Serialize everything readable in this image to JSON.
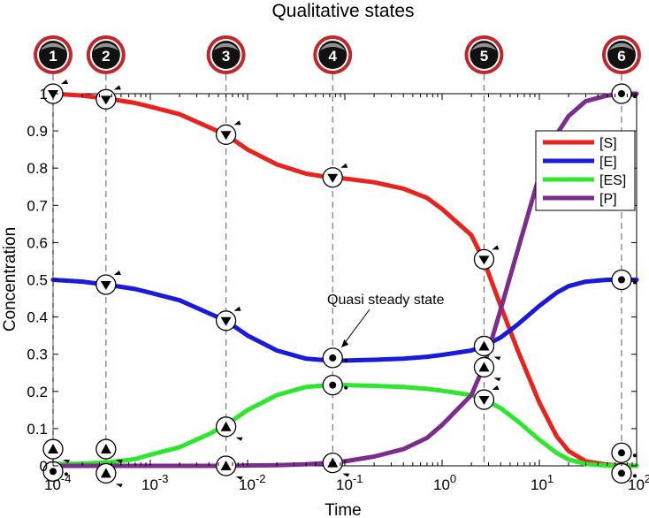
{
  "chart_data": {
    "type": "line",
    "title": "Qualitative states",
    "xlabel": "Time",
    "ylabel": "Concentration",
    "xscale": "log",
    "xlim": [
      0.0001,
      100
    ],
    "ylim": [
      0,
      1
    ],
    "x_ticks": [
      {
        "value": 0.0001,
        "base": "10",
        "exp": "-4"
      },
      {
        "value": 0.001,
        "base": "10",
        "exp": "-3"
      },
      {
        "value": 0.01,
        "base": "10",
        "exp": "-2"
      },
      {
        "value": 0.1,
        "base": "10",
        "exp": "-1"
      },
      {
        "value": 1,
        "base": "10",
        "exp": "0"
      },
      {
        "value": 10,
        "base": "10",
        "exp": "1"
      },
      {
        "value": 100,
        "base": "10",
        "exp": "2"
      }
    ],
    "y_ticks": [
      "0",
      "0.1",
      "0.2",
      "0.3",
      "0.4",
      "0.5",
      "0.6",
      "0.7",
      "0.8",
      "0.9",
      "1"
    ],
    "grid": false,
    "legend_position": "right",
    "series": [
      {
        "name": "[S]",
        "color": "#e8231e",
        "x": [
          0.0001,
          0.0002,
          0.0004,
          0.0007,
          0.001,
          0.002,
          0.004,
          0.006,
          0.01,
          0.02,
          0.04,
          0.07,
          0.1,
          0.2,
          0.4,
          0.7,
          1,
          2,
          2.7,
          4,
          6,
          10,
          15,
          20,
          30,
          50,
          70,
          100
        ],
        "y": [
          1.0,
          0.995,
          0.985,
          0.975,
          0.965,
          0.945,
          0.91,
          0.89,
          0.85,
          0.81,
          0.785,
          0.775,
          0.772,
          0.762,
          0.745,
          0.72,
          0.69,
          0.62,
          0.55,
          0.43,
          0.31,
          0.17,
          0.08,
          0.04,
          0.012,
          0.003,
          0.001,
          0.0
        ]
      },
      {
        "name": "[E]",
        "color": "#1a1adc",
        "x": [
          0.0001,
          0.0002,
          0.0004,
          0.0007,
          0.001,
          0.002,
          0.004,
          0.006,
          0.01,
          0.02,
          0.04,
          0.07,
          0.1,
          0.2,
          0.4,
          0.7,
          1,
          2,
          2.7,
          4,
          6,
          10,
          15,
          20,
          30,
          50,
          70,
          100
        ],
        "y": [
          0.5,
          0.495,
          0.485,
          0.475,
          0.465,
          0.445,
          0.41,
          0.39,
          0.35,
          0.31,
          0.288,
          0.283,
          0.283,
          0.285,
          0.288,
          0.293,
          0.298,
          0.31,
          0.322,
          0.345,
          0.38,
          0.43,
          0.465,
          0.483,
          0.495,
          0.5,
          0.5,
          0.5
        ]
      },
      {
        "name": "[ES]",
        "color": "#2de62d",
        "x": [
          0.0001,
          0.0002,
          0.0004,
          0.0007,
          0.001,
          0.002,
          0.004,
          0.006,
          0.01,
          0.02,
          0.04,
          0.07,
          0.1,
          0.2,
          0.4,
          0.7,
          1,
          2,
          2.7,
          4,
          6,
          10,
          15,
          20,
          30,
          50,
          70,
          100
        ],
        "y": [
          0.005,
          0.006,
          0.01,
          0.018,
          0.03,
          0.05,
          0.085,
          0.11,
          0.15,
          0.19,
          0.212,
          0.217,
          0.217,
          0.215,
          0.212,
          0.207,
          0.202,
          0.19,
          0.178,
          0.155,
          0.12,
          0.07,
          0.035,
          0.017,
          0.005,
          0.001,
          0.0,
          0.0
        ]
      },
      {
        "name": "[P]",
        "color": "#7b2d8e",
        "x": [
          0.0001,
          0.0002,
          0.0004,
          0.0007,
          0.001,
          0.002,
          0.004,
          0.006,
          0.01,
          0.02,
          0.04,
          0.07,
          0.1,
          0.2,
          0.4,
          0.7,
          1,
          2,
          2.7,
          4,
          6,
          10,
          15,
          20,
          30,
          50,
          70,
          100
        ],
        "y": [
          0.0,
          0.0,
          0.0,
          0.0,
          0.0,
          0.0,
          0.0,
          0.0,
          0.001,
          0.002,
          0.004,
          0.008,
          0.012,
          0.025,
          0.045,
          0.075,
          0.11,
          0.19,
          0.27,
          0.42,
          0.58,
          0.78,
          0.89,
          0.94,
          0.98,
          0.995,
          1.0,
          1.0
        ]
      }
    ],
    "states": [
      {
        "label": "1",
        "x": 0.0001
      },
      {
        "label": "2",
        "x": 0.00035
      },
      {
        "label": "3",
        "x": 0.006
      },
      {
        "label": "4",
        "x": 0.075
      },
      {
        "label": "5",
        "x": 2.7
      },
      {
        "label": "6",
        "x": 70
      }
    ],
    "state_markers": [
      {
        "state": "1",
        "y": 1.0,
        "kind": "down"
      },
      {
        "state": "1",
        "y": 0.045,
        "kind": "up"
      },
      {
        "state": "1",
        "y": -0.015,
        "kind": "dot"
      },
      {
        "state": "2",
        "y": 0.985,
        "kind": "down"
      },
      {
        "state": "2",
        "y": 0.487,
        "kind": "down"
      },
      {
        "state": "2",
        "y": 0.045,
        "kind": "up"
      },
      {
        "state": "2",
        "y": -0.02,
        "kind": "up"
      },
      {
        "state": "3",
        "y": 0.89,
        "kind": "down"
      },
      {
        "state": "3",
        "y": 0.39,
        "kind": "down"
      },
      {
        "state": "3",
        "y": 0.105,
        "kind": "up"
      },
      {
        "state": "3",
        "y": 0.0,
        "kind": "up"
      },
      {
        "state": "4",
        "y": 0.775,
        "kind": "down"
      },
      {
        "state": "4",
        "y": 0.29,
        "kind": "dot"
      },
      {
        "state": "4",
        "y": 0.217,
        "kind": "dot"
      },
      {
        "state": "4",
        "y": 0.008,
        "kind": "up"
      },
      {
        "state": "5",
        "y": 0.555,
        "kind": "down"
      },
      {
        "state": "5",
        "y": 0.322,
        "kind": "up"
      },
      {
        "state": "5",
        "y": 0.265,
        "kind": "up"
      },
      {
        "state": "5",
        "y": 0.178,
        "kind": "down"
      },
      {
        "state": "6",
        "y": 1.0,
        "kind": "dot"
      },
      {
        "state": "6",
        "y": 0.5,
        "kind": "dot"
      },
      {
        "state": "6",
        "y": 0.035,
        "kind": "dot"
      },
      {
        "state": "6",
        "y": -0.02,
        "kind": "dot"
      }
    ],
    "annotation": {
      "text": "Quasi steady state",
      "target_x": 0.075,
      "target_y": 0.29
    }
  }
}
